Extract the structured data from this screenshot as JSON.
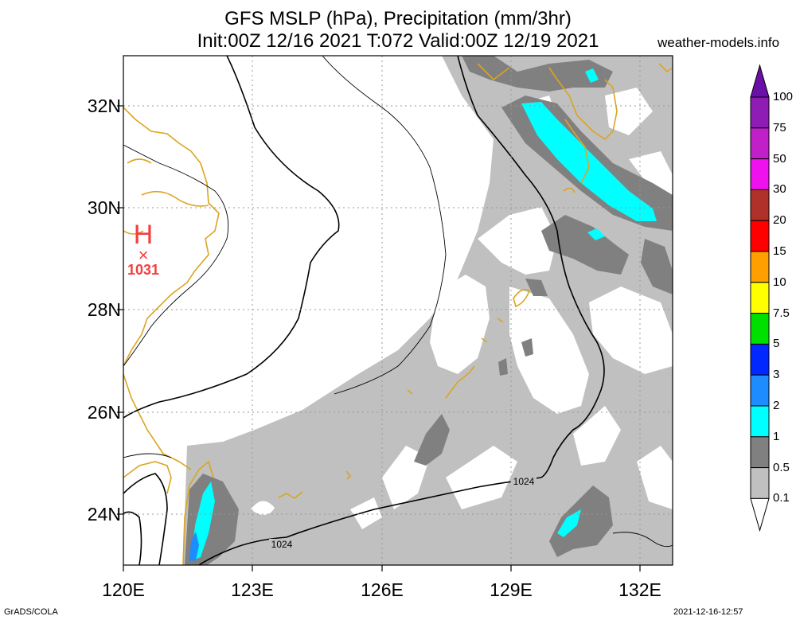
{
  "title_line1": "GFS MSLP (hPa), Precipitation (mm/3hr)",
  "title_line2": "Init:00Z 12/16 2021 T:072 Valid:00Z 12/19 2021",
  "site": "weather-models.info",
  "footer_left": "GrADS/COLA",
  "footer_right": "2021-12-16-12:57",
  "lat_labels": [
    "32N",
    "30N",
    "28N",
    "26N",
    "24N"
  ],
  "lon_labels": [
    "120E",
    "123E",
    "126E",
    "129E",
    "132E"
  ],
  "high_center": {
    "symbol": "H",
    "mark": "×",
    "value": "1031"
  },
  "isobar_labels": [
    "1024",
    "1024"
  ],
  "colorbar": {
    "labels": [
      "100",
      "75",
      "50",
      "30",
      "20",
      "15",
      "10",
      "7.5",
      "5",
      "3",
      "2",
      "1",
      "0.5",
      "0.1"
    ],
    "colors": [
      "#6a0fa8",
      "#8f1cb5",
      "#c11fc8",
      "#ef12ef",
      "#b0302a",
      "#ff0000",
      "#ffa000",
      "#ffff00",
      "#00e000",
      "#0028ff",
      "#1c8cff",
      "#00ffff",
      "#808080",
      "#c0c0c0"
    ]
  },
  "colors": {
    "coast": "#daa520",
    "light_precip": "#c0c0c0",
    "medium_precip": "#808080",
    "cyan_precip": "#00ffff",
    "blue_precip": "#1c8cff",
    "high_marker": "#f04040"
  }
}
